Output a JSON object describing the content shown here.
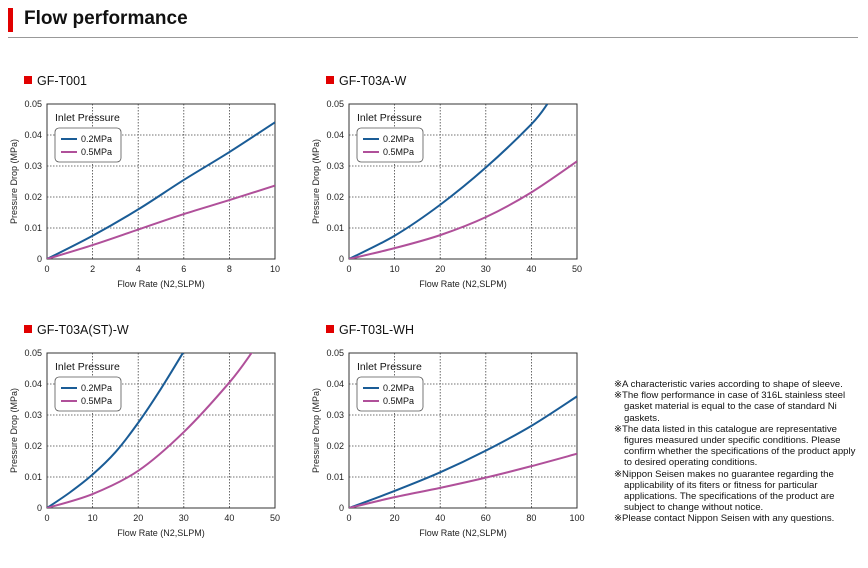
{
  "header": {
    "title": "Flow performance"
  },
  "chart_data": [
    {
      "type": "line",
      "title": "GF-T001",
      "xlabel": "Flow Rate (N2,SLPM)",
      "ylabel": "Pressure Drop (MPa)",
      "xlim": [
        0,
        10
      ],
      "ylim": [
        0,
        0.05
      ],
      "xticks": [
        0,
        2,
        4,
        6,
        8,
        10
      ],
      "yticks": [
        0,
        0.01,
        0.02,
        0.03,
        0.04,
        0.05
      ],
      "grid": true,
      "legend_title": "Inlet Pressure",
      "legend_position": "top-left",
      "series": [
        {
          "name": "0.2MPa",
          "color": "#1a5c96",
          "x": [
            0,
            2,
            4,
            6,
            8,
            10
          ],
          "y": [
            0,
            0.0075,
            0.016,
            0.0255,
            0.0345,
            0.0441
          ]
        },
        {
          "name": "0.5MPa",
          "color": "#b0509a",
          "x": [
            0,
            2,
            4,
            6,
            8,
            10
          ],
          "y": [
            0,
            0.0045,
            0.0095,
            0.0145,
            0.019,
            0.0237
          ]
        }
      ]
    },
    {
      "type": "line",
      "title": "GF-T03A-W",
      "xlabel": "Flow Rate (N2,SLPM)",
      "ylabel": "Pressure Drop (MPa)",
      "xlim": [
        0,
        50
      ],
      "ylim": [
        0,
        0.05
      ],
      "xticks": [
        0,
        10,
        20,
        30,
        40,
        50
      ],
      "yticks": [
        0,
        0.01,
        0.02,
        0.03,
        0.04,
        0.05
      ],
      "grid": true,
      "legend_title": "Inlet Pressure",
      "legend_position": "top-left",
      "series": [
        {
          "name": "0.2MPa",
          "color": "#1a5c96",
          "x": [
            0,
            10,
            20,
            30,
            40,
            43.5
          ],
          "y": [
            0,
            0.0075,
            0.0175,
            0.0295,
            0.0435,
            0.05
          ]
        },
        {
          "name": "0.5MPa",
          "color": "#b0509a",
          "x": [
            0,
            10,
            20,
            30,
            40,
            50
          ],
          "y": [
            0,
            0.0035,
            0.0077,
            0.0135,
            0.0215,
            0.0315
          ]
        }
      ]
    },
    {
      "type": "line",
      "title": "GF-T03A(ST)-W",
      "xlabel": "Flow Rate (N2,SLPM)",
      "ylabel": "Pressure Drop (MPa)",
      "xlim": [
        0,
        50
      ],
      "ylim": [
        0,
        0.05
      ],
      "xticks": [
        0,
        10,
        20,
        30,
        40,
        50
      ],
      "yticks": [
        0,
        0.01,
        0.02,
        0.03,
        0.04,
        0.05
      ],
      "grid": true,
      "legend_title": "Inlet Pressure",
      "legend_position": "top-left",
      "series": [
        {
          "name": "0.2MPa",
          "color": "#1a5c96",
          "x": [
            0,
            5,
            10,
            15,
            20,
            25,
            30
          ],
          "y": [
            0,
            0.005,
            0.0108,
            0.018,
            0.0275,
            0.0385,
            0.0505
          ]
        },
        {
          "name": "0.5MPa",
          "color": "#b0509a",
          "x": [
            0,
            10,
            20,
            30,
            40,
            45
          ],
          "y": [
            0,
            0.0045,
            0.012,
            0.0245,
            0.0405,
            0.0503
          ]
        }
      ]
    },
    {
      "type": "line",
      "title": "GF-T03L-WH",
      "xlabel": "Flow Rate (N2,SLPM)",
      "ylabel": "Pressure Drop (MPa)",
      "xlim": [
        0,
        100
      ],
      "ylim": [
        0,
        0.05
      ],
      "xticks": [
        0,
        20,
        40,
        60,
        80,
        100
      ],
      "yticks": [
        0,
        0.01,
        0.02,
        0.03,
        0.04,
        0.05
      ],
      "grid": true,
      "legend_title": "Inlet Pressure",
      "legend_position": "top-left",
      "series": [
        {
          "name": "0.2MPa",
          "color": "#1a5c96",
          "x": [
            0,
            20,
            40,
            60,
            80,
            100
          ],
          "y": [
            0,
            0.0055,
            0.0115,
            0.0185,
            0.0265,
            0.036
          ]
        },
        {
          "name": "0.5MPa",
          "color": "#b0509a",
          "x": [
            0,
            20,
            40,
            60,
            80,
            100
          ],
          "y": [
            0,
            0.0035,
            0.0065,
            0.0098,
            0.0135,
            0.0175
          ]
        }
      ]
    }
  ],
  "notes": [
    "※A characteristic varies according to shape of sleeve.",
    "※The flow performance in case of 316L stainless steel gasket material is equal to the case of standard Ni gaskets.",
    "※The data listed in this catalogue are representative figures measured under specific conditions. Please confirm whether the specifications of the product apply to desired operating conditions.",
    "※Nippon Seisen makes no guarantee regarding the applicability of its fiters or fitness for particular applications. The specifications of the product are subject to change without notice.",
    "※Please contact Nippon Seisen with any questions."
  ]
}
